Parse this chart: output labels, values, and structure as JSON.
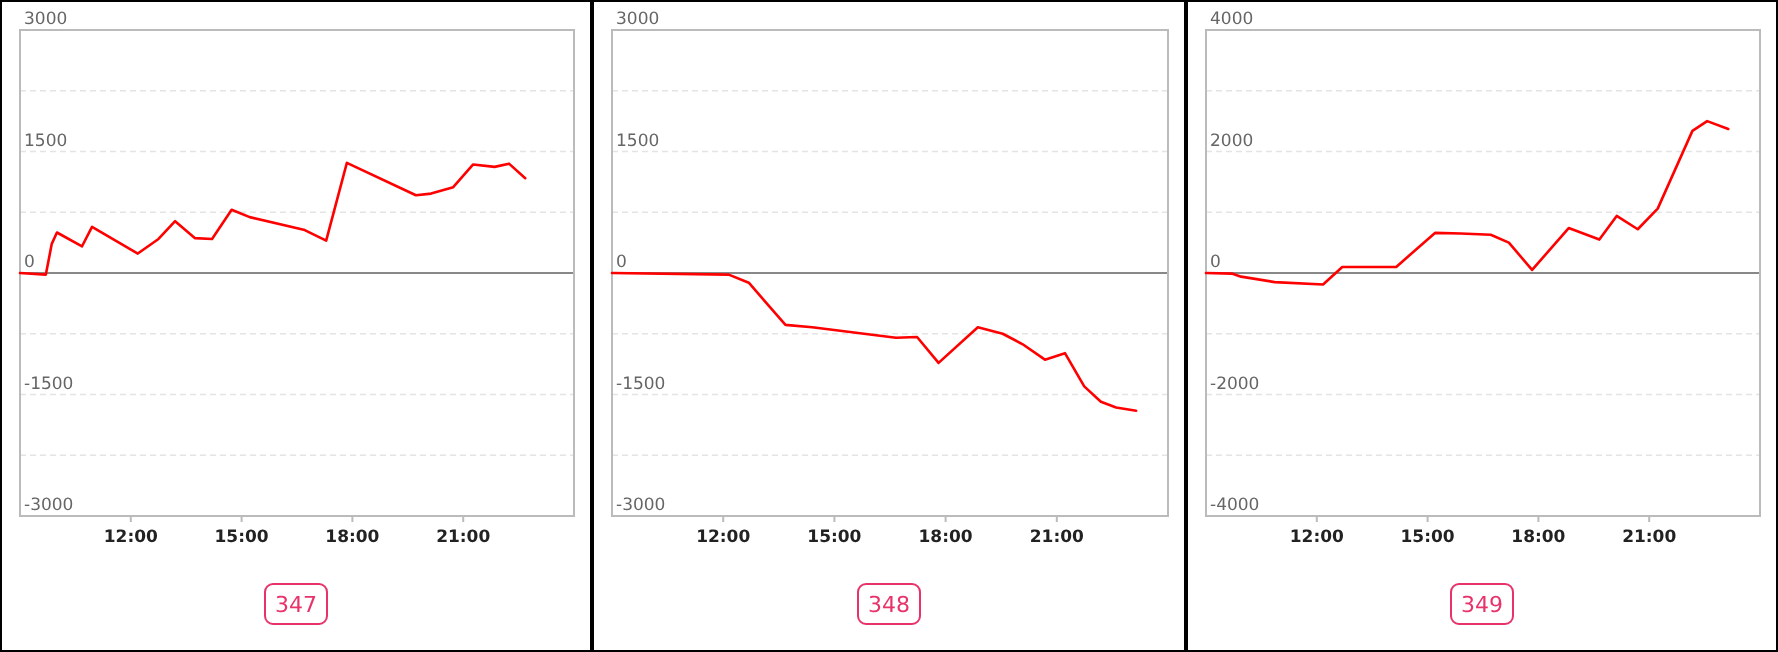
{
  "chart_data": [
    {
      "type": "line",
      "annotations": [
        "347"
      ],
      "xlim": [
        9,
        24
      ],
      "xticks": [
        {
          "value": 12,
          "label": "12:00"
        },
        {
          "value": 15,
          "label": "15:00"
        },
        {
          "value": 18,
          "label": "18:00"
        },
        {
          "value": 21,
          "label": "21:00"
        }
      ],
      "ylim": [
        -3000,
        3000
      ],
      "yticks": [
        -3000,
        {
          "value": -2250,
          "label": null
        },
        -1500,
        {
          "value": -750,
          "label": null
        },
        0,
        {
          "value": 750,
          "label": null
        },
        1500,
        {
          "value": 2250,
          "label": null
        },
        3000
      ],
      "grid": "y",
      "marker": "none",
      "line_style": "solid",
      "series": [
        {
          "color": "#ff0000",
          "x": [
            9.0,
            9.7,
            9.86,
            10.0,
            10.68,
            10.95,
            12.19,
            12.75,
            13.2,
            13.74,
            14.2,
            14.73,
            15.22,
            16.71,
            17.29,
            17.85,
            19.72,
            20.13,
            20.73,
            21.27,
            21.85,
            22.24,
            22.68
          ],
          "values": [
            0,
            -20,
            360,
            500,
            330,
            570,
            240,
            420,
            640,
            430,
            420,
            780,
            690,
            530,
            400,
            1360,
            960,
            980,
            1060,
            1340,
            1310,
            1350,
            1170
          ]
        }
      ]
    },
    {
      "type": "line",
      "annotations": [
        "348"
      ],
      "xlim": [
        9,
        24
      ],
      "xticks": [
        {
          "value": 12,
          "label": "12:00"
        },
        {
          "value": 15,
          "label": "15:00"
        },
        {
          "value": 18,
          "label": "18:00"
        },
        {
          "value": 21,
          "label": "21:00"
        }
      ],
      "ylim": [
        -3000,
        3000
      ],
      "yticks": [
        -3000,
        {
          "value": -2250,
          "label": null
        },
        -1500,
        {
          "value": -750,
          "label": null
        },
        0,
        {
          "value": 750,
          "label": null
        },
        1500,
        {
          "value": 2250,
          "label": null
        },
        3000
      ],
      "grid": "y",
      "marker": "none",
      "line_style": "solid",
      "series": [
        {
          "color": "#ff0000",
          "x": [
            9.0,
            12.15,
            12.69,
            13.68,
            14.4,
            16.66,
            17.23,
            17.81,
            18.87,
            19.54,
            20.08,
            20.68,
            21.22,
            21.74,
            22.19,
            22.6,
            23.14
          ],
          "values": [
            0,
            -20,
            -120,
            -640,
            -670,
            -800,
            -790,
            -1110,
            -670,
            -750,
            -880,
            -1070,
            -990,
            -1400,
            -1590,
            -1660,
            -1700
          ]
        }
      ]
    },
    {
      "type": "line",
      "annotations": [
        "349"
      ],
      "xlim": [
        9,
        24
      ],
      "xticks": [
        {
          "value": 12,
          "label": "12:00"
        },
        {
          "value": 15,
          "label": "15:00"
        },
        {
          "value": 18,
          "label": "18:00"
        },
        {
          "value": 21,
          "label": "21:00"
        }
      ],
      "ylim": [
        -4000,
        4000
      ],
      "yticks": [
        -4000,
        {
          "value": -3000,
          "label": null
        },
        -2000,
        {
          "value": -1000,
          "label": null
        },
        0,
        {
          "value": 1000,
          "label": null
        },
        2000,
        {
          "value": 3000,
          "label": null
        },
        4000
      ],
      "grid": "y",
      "marker": "none",
      "line_style": "solid",
      "series": [
        {
          "color": "#ff0000",
          "x": [
            9.0,
            9.7,
            9.95,
            10.86,
            12.17,
            12.69,
            14.15,
            15.2,
            15.9,
            16.71,
            17.2,
            17.83,
            18.82,
            19.65,
            20.12,
            20.69,
            21.23,
            22.17,
            22.57,
            23.14
          ],
          "values": [
            0,
            -10,
            -60,
            -150,
            -190,
            100,
            100,
            660,
            650,
            630,
            500,
            50,
            740,
            550,
            940,
            720,
            1060,
            2340,
            2500,
            2370
          ]
        }
      ]
    }
  ]
}
